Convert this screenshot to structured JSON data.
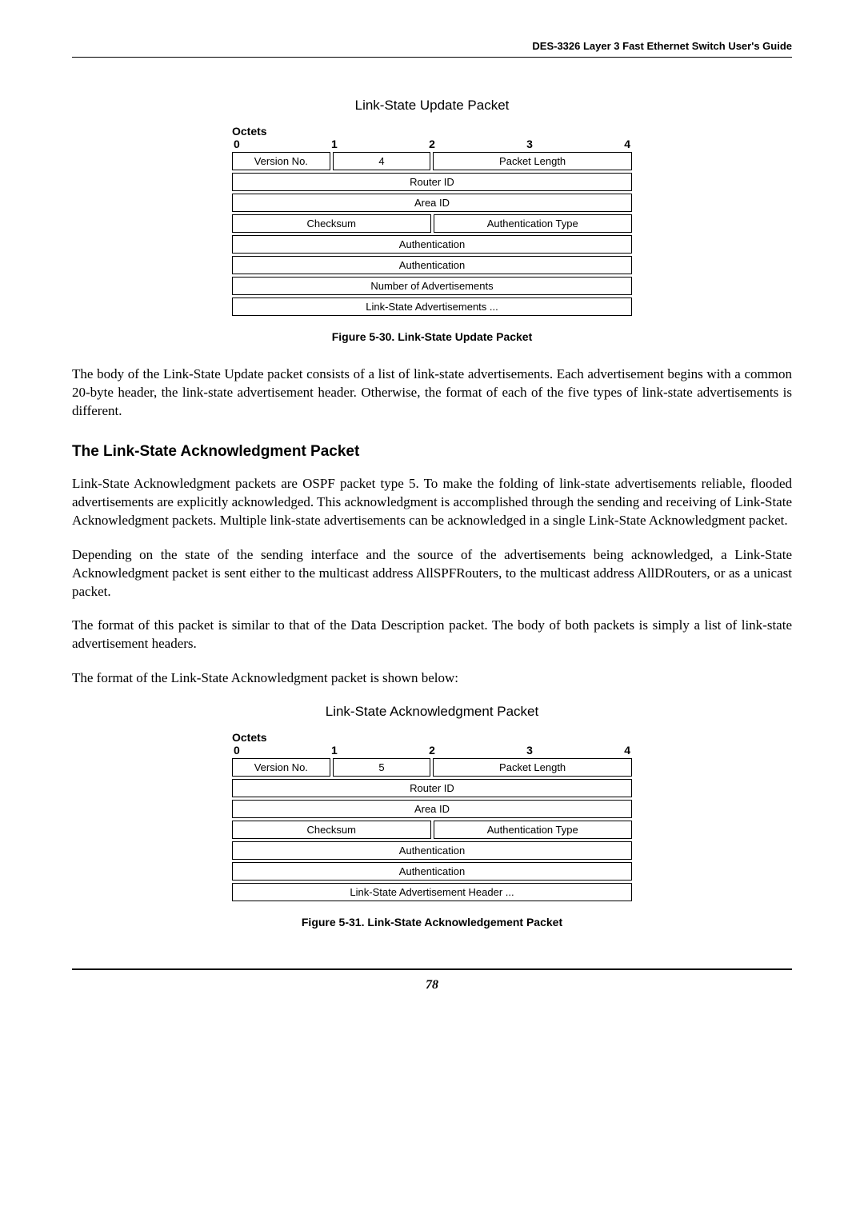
{
  "header": {
    "title": "DES-3326 Layer 3 Fast Ethernet Switch User's Guide"
  },
  "diagram1": {
    "title": "Link-State Update Packet",
    "octets_label": "Octets",
    "ruler": [
      "0",
      "1",
      "2",
      "3",
      "4"
    ],
    "row1": {
      "version_no": "Version No.",
      "type": "4",
      "packet_length": "Packet Length"
    },
    "router_id": "Router ID",
    "area_id": "Area ID",
    "checksum": "Checksum",
    "auth_type": "Authentication Type",
    "auth1": "Authentication",
    "auth2": "Authentication",
    "num_adv": "Number of Advertisements",
    "ls_adv": "Link-State Advertisements ..."
  },
  "caption1": "Figure 5-30.  Link-State Update Packet",
  "para1": "The body of the Link-State Update packet consists of a list of link-state advertisements. Each advertisement begins with a common 20-byte header, the link-state advertisement header. Otherwise, the format of each of the five types of link-state advertisements is different.",
  "subheading1": "The Link-State Acknowledgment Packet",
  "para2": "Link-State Acknowledgment packets are OSPF packet type 5. To make the folding of link-state advertisements reliable, flooded advertisements are explicitly acknowledged. This acknowledgment is accomplished through the sending and receiving of Link-State Acknowledgment packets. Multiple link-state advertisements can be acknowledged in a single Link-State Acknowledgment packet.",
  "para3": "Depending on the state of the sending interface and the source of the advertisements being acknowledged, a Link-State Acknowledgment packet is sent either to the multicast address AllSPFRouters, to the multicast address AllDRouters, or as a unicast packet.",
  "para4": "The format of this packet is similar to that of the Data Description packet. The body of both packets is simply a list of link-state advertisement headers.",
  "para5": "The format of the Link-State Acknowledgment packet is shown below:",
  "diagram2": {
    "title": "Link-State Acknowledgment Packet",
    "octets_label": "Octets",
    "ruler": [
      "0",
      "1",
      "2",
      "3",
      "4"
    ],
    "row1": {
      "version_no": "Version No.",
      "type": "5",
      "packet_length": "Packet Length"
    },
    "router_id": "Router ID",
    "area_id": "Area ID",
    "checksum": "Checksum",
    "auth_type": "Authentication Type",
    "auth1": "Authentication",
    "auth2": "Authentication",
    "ls_adv_header": "Link-State Advertisement Header ..."
  },
  "caption2": "Figure 5-31.  Link-State Acknowledgement Packet",
  "footer": {
    "page_num": "78"
  }
}
